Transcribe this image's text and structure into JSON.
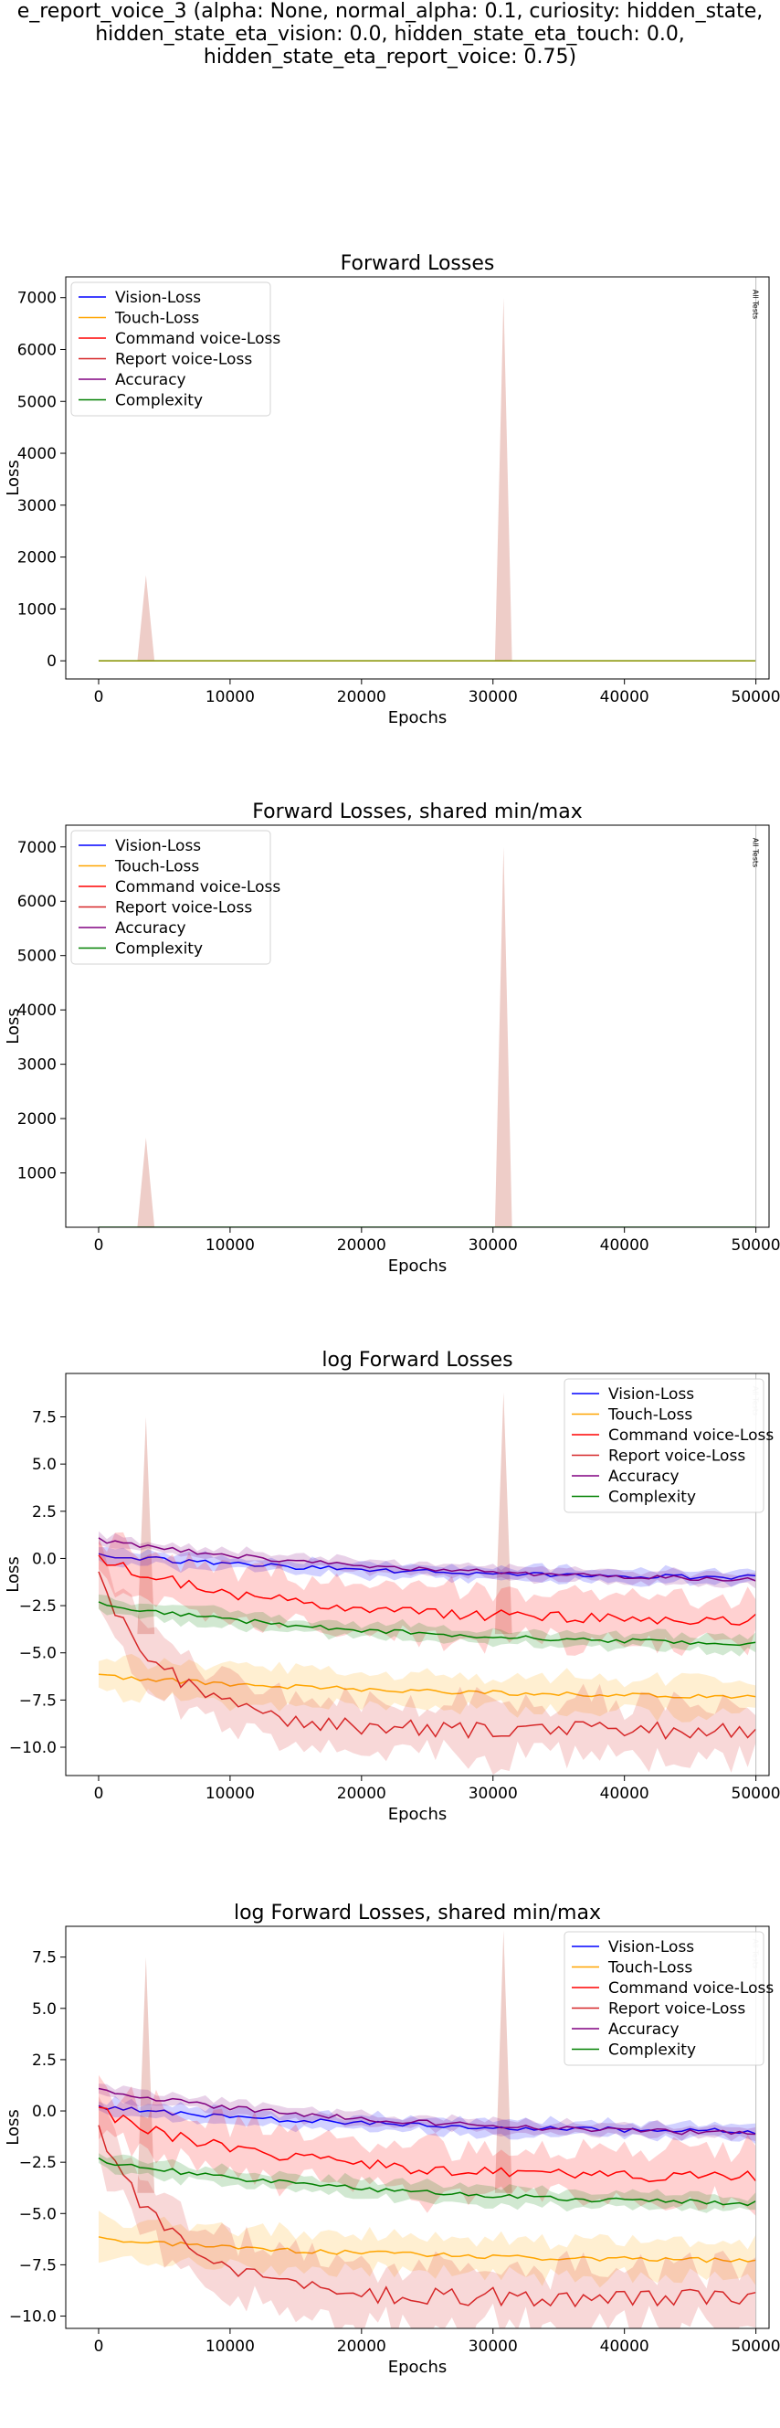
{
  "suptitle": {
    "lines": [
      "e_report_voice_3 (alpha: None, normal_alpha: 0.1, curiosity: hidden_state,",
      "hidden_state_eta_vision: 0.0, hidden_state_eta_touch: 0.0,",
      "hidden_state_eta_report_voice: 0.75)"
    ]
  },
  "colors": {
    "vision": "#0000ff",
    "touch": "#ffa500",
    "command": "#ff0000",
    "report": "#d62728",
    "accuracy": "#800080",
    "complexity": "#008000",
    "spike": "#e8bcb6",
    "marker": "#bdbdbd"
  },
  "chart_data": [
    {
      "type": "line",
      "title": "Forward Losses",
      "xlabel": "Epochs",
      "ylabel": "Loss",
      "xlim": [
        -2500,
        51000
      ],
      "ylim": [
        -350,
        7400
      ],
      "xticks": [
        0,
        10000,
        20000,
        30000,
        40000,
        50000
      ],
      "yticks": [
        0,
        1000,
        2000,
        3000,
        4000,
        5000,
        6000,
        7000
      ],
      "legend_loc": "upper-left",
      "marker_label": "All Tests",
      "marker_x": 50000,
      "spikes": [
        {
          "x": 3600,
          "peak": 1650
        },
        {
          "x": 30800,
          "peak": 7000
        }
      ],
      "legend": [
        "Vision-Loss",
        "Touch-Loss",
        "Command voice-Loss",
        "Report voice-Loss",
        "Accuracy",
        "Complexity"
      ],
      "flat_value": 0,
      "log": false
    },
    {
      "type": "line",
      "title": "Forward Losses, shared min/max",
      "xlabel": "Epochs",
      "ylabel": "Loss",
      "xlim": [
        -2500,
        51000
      ],
      "ylim": [
        0,
        7400
      ],
      "xticks": [
        0,
        10000,
        20000,
        30000,
        40000,
        50000
      ],
      "yticks": [
        1000,
        2000,
        3000,
        4000,
        5000,
        6000,
        7000
      ],
      "legend_loc": "upper-left",
      "marker_label": "All Tests",
      "marker_x": 50000,
      "spikes": [
        {
          "x": 3600,
          "peak": 1650
        },
        {
          "x": 30800,
          "peak": 7000
        }
      ],
      "legend": [
        "Vision-Loss",
        "Touch-Loss",
        "Command voice-Loss",
        "Report voice-Loss",
        "Accuracy",
        "Complexity"
      ],
      "flat_value": 0,
      "log": false
    },
    {
      "type": "line",
      "title": "log Forward Losses",
      "xlabel": "Epochs",
      "ylabel": "Loss",
      "xlim": [
        -2500,
        51000
      ],
      "ylim": [
        -11.5,
        9.8
      ],
      "xticks": [
        0,
        10000,
        20000,
        30000,
        40000,
        50000
      ],
      "yticks": [
        -10.0,
        -7.5,
        -5.0,
        -2.5,
        0.0,
        2.5,
        5.0,
        7.5
      ],
      "ytick_labels": [
        "−10.0",
        "−7.5",
        "−5.0",
        "−2.5",
        "0.0",
        "2.5",
        "5.0",
        "7.5"
      ],
      "legend_loc": "upper-right",
      "marker_label": "All Tests",
      "marker_x": 50000,
      "spikes": [
        {
          "x": 3600,
          "peak": 7.5
        },
        {
          "x": 30800,
          "peak": 8.8
        }
      ],
      "legend": [
        "Vision-Loss",
        "Touch-Loss",
        "Command voice-Loss",
        "Report voice-Loss",
        "Accuracy",
        "Complexity"
      ],
      "log": true,
      "series": [
        {
          "name": "Vision-Loss",
          "start": 0.2,
          "end": -1.0,
          "band": 0.35
        },
        {
          "name": "Touch-Loss",
          "start": -6.2,
          "end": -7.3,
          "band": 0.9
        },
        {
          "name": "Command voice-Loss",
          "start": 0.0,
          "end": -3.3,
          "band": 1.3
        },
        {
          "name": "Report voice-Loss",
          "start": -1.0,
          "end": -9.1,
          "band": 1.4
        },
        {
          "name": "Accuracy",
          "start": 1.0,
          "end": -1.1,
          "band": 0.3
        },
        {
          "name": "Complexity",
          "start": -2.4,
          "end": -4.5,
          "band": 0.4
        }
      ]
    },
    {
      "type": "line",
      "title": "log Forward Losses, shared min/max",
      "xlabel": "Epochs",
      "ylabel": "Loss",
      "xlim": [
        -2500,
        51000
      ],
      "ylim": [
        -10.6,
        9.0
      ],
      "xticks": [
        0,
        10000,
        20000,
        30000,
        40000,
        50000
      ],
      "yticks": [
        -10.0,
        -7.5,
        -5.0,
        -2.5,
        0.0,
        2.5,
        5.0,
        7.5
      ],
      "ytick_labels": [
        "−10.0",
        "−7.5",
        "−5.0",
        "−2.5",
        "0.0",
        "2.5",
        "5.0",
        "7.5"
      ],
      "legend_loc": "upper-right",
      "marker_label": "All Tests",
      "marker_x": 50000,
      "spikes": [
        {
          "x": 3600,
          "peak": 7.5
        },
        {
          "x": 30800,
          "peak": 8.8
        }
      ],
      "legend": [
        "Vision-Loss",
        "Touch-Loss",
        "Command voice-Loss",
        "Report voice-Loss",
        "Accuracy",
        "Complexity"
      ],
      "log": true,
      "series": [
        {
          "name": "Vision-Loss",
          "start": 0.2,
          "end": -1.0,
          "band": 0.35
        },
        {
          "name": "Touch-Loss",
          "start": -6.2,
          "end": -7.3,
          "band": 0.9
        },
        {
          "name": "Command voice-Loss",
          "start": 0.0,
          "end": -3.3,
          "band": 1.3
        },
        {
          "name": "Report voice-Loss",
          "start": -1.0,
          "end": -9.1,
          "band": 1.4
        },
        {
          "name": "Accuracy",
          "start": 1.0,
          "end": -1.1,
          "band": 0.3
        },
        {
          "name": "Complexity",
          "start": -2.4,
          "end": -4.5,
          "band": 0.4
        }
      ]
    }
  ]
}
